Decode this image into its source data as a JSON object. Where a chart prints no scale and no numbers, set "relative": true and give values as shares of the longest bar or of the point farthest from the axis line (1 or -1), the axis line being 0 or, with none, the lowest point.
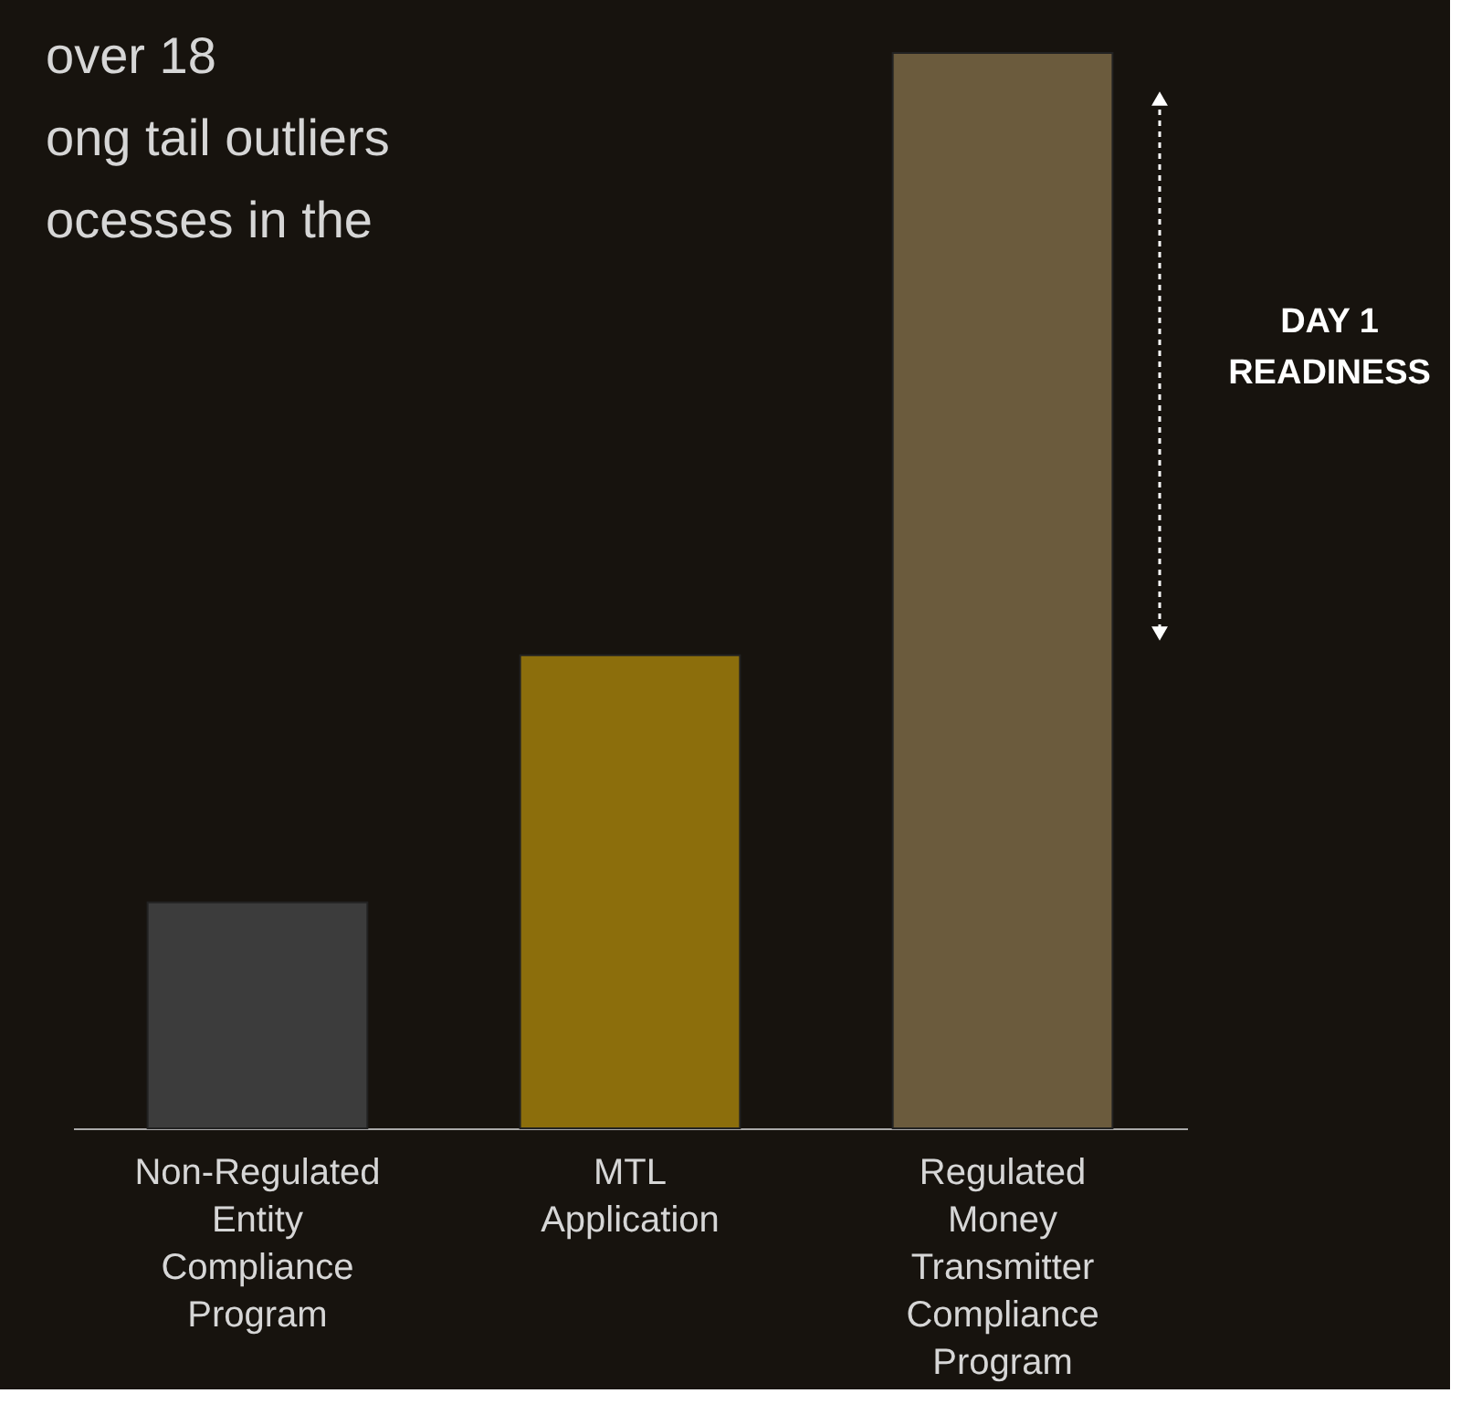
{
  "chart_data": {
    "type": "bar",
    "relative": true,
    "categories": [
      "Non-Regulated Entity Compliance Program",
      "MTL Application",
      "Regulated Money Transmitter Compliance Program"
    ],
    "values": [
      0.21,
      0.44,
      1
    ],
    "colors": [
      "#3c3c3c",
      "#8c6e0c",
      "#6b5b3d"
    ],
    "annotations": [
      "over 18",
      "ong tail outliers",
      "ocesses in the",
      "DAY 1 READINESS"
    ],
    "grid": false
  }
}
